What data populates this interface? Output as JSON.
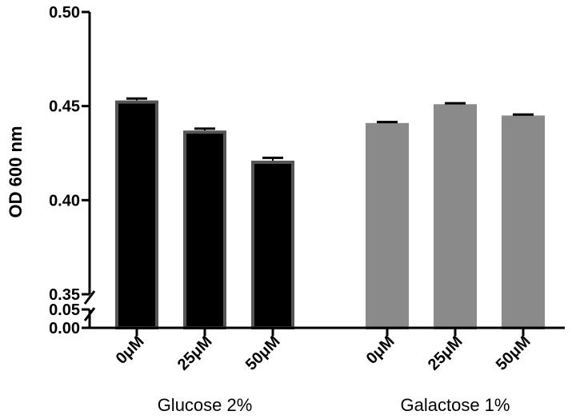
{
  "chart_data": {
    "type": "bar",
    "title": "",
    "ylabel": "OD 600 nm",
    "xlabel": "",
    "axis_break": true,
    "lower_ylim": [
      0.0,
      0.05
    ],
    "upper_ylim": [
      0.35,
      0.5
    ],
    "lower_ticks": [
      "0.00",
      "0.05"
    ],
    "upper_ticks": [
      "0.35",
      "0.40",
      "0.45",
      "0.50"
    ],
    "grid": false,
    "groups": [
      {
        "label": "Glucose 2%",
        "color": "#000000",
        "edge_color": "#555555",
        "bars": [
          {
            "category": "0μM",
            "value": 0.453,
            "error": 0.001
          },
          {
            "category": "25μM",
            "value": 0.437,
            "error": 0.001
          },
          {
            "category": "50μM",
            "value": 0.421,
            "error": 0.0015
          }
        ]
      },
      {
        "label": "Galactose 1%",
        "color": "#8a8a8a",
        "edge_color": "#8a8a8a",
        "bars": [
          {
            "category": "0μM",
            "value": 0.441,
            "error": 0.0005
          },
          {
            "category": "25μM",
            "value": 0.451,
            "error": 0.0005
          },
          {
            "category": "50μM",
            "value": 0.445,
            "error": 0.0005
          }
        ]
      }
    ]
  }
}
